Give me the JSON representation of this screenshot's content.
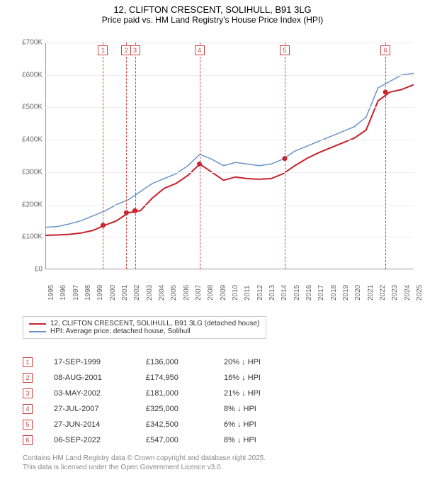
{
  "title_line1": "12, CLIFTON CRESCENT, SOLIHULL, B91 3LG",
  "title_line2": "Price paid vs. HM Land Registry's House Price Index (HPI)",
  "chart": {
    "type": "line",
    "background_color": "#ffffff",
    "grid_color": "#eeeeee",
    "shade_color": "#e8eef5",
    "vline_color": "#d04040",
    "ylim": [
      0,
      700
    ],
    "ytick_step": 100,
    "ytick_prefix": "£",
    "ytick_suffix": "K",
    "xlim": [
      1995,
      2025
    ],
    "xtick_step": 1,
    "xticks": [
      1995,
      1996,
      1997,
      1998,
      1999,
      2000,
      2001,
      2002,
      2003,
      2004,
      2005,
      2006,
      2007,
      2008,
      2009,
      2010,
      2011,
      2012,
      2013,
      2014,
      2015,
      2016,
      2017,
      2018,
      2019,
      2020,
      2021,
      2022,
      2023,
      2024,
      2025
    ],
    "shaded_year_pairs": [
      [
        1999,
        2000
      ],
      [
        2001,
        2002
      ],
      [
        2003,
        2004
      ],
      [
        2005,
        2006
      ],
      [
        2007,
        2008
      ],
      [
        2009,
        2010
      ],
      [
        2011,
        2012
      ],
      [
        2013,
        2014
      ],
      [
        2015,
        2016
      ],
      [
        2017,
        2018
      ],
      [
        2019,
        2020
      ],
      [
        2021,
        2022
      ],
      [
        2023,
        2024
      ]
    ],
    "event_years": [
      1999.7,
      2001.6,
      2002.3,
      2007.55,
      2014.5,
      2022.7
    ],
    "series": [
      {
        "name": "HPI: Average price, detached house, Solihull",
        "color": "#6a93c9",
        "line_width": 1.5,
        "points_y_k": [
          130,
          132,
          140,
          150,
          165,
          180,
          200,
          215,
          240,
          265,
          280,
          295,
          320,
          355,
          340,
          320,
          330,
          325,
          320,
          325,
          340,
          365,
          380,
          395,
          410,
          425,
          440,
          470,
          560,
          580,
          600,
          605
        ]
      },
      {
        "name": "12, CLIFTON CRESCENT, SOLIHULL, B91 3LG (detached house)",
        "color": "#c8202b",
        "line_width": 2,
        "points_y_k": [
          105,
          106,
          108,
          112,
          120,
          136,
          150,
          175,
          181,
          220,
          250,
          265,
          290,
          325,
          300,
          275,
          285,
          280,
          278,
          280,
          295,
          320,
          342,
          360,
          375,
          390,
          405,
          430,
          520,
          547,
          555,
          570
        ]
      }
    ],
    "sale_markers": [
      {
        "x": 1999.7,
        "y_k": 136
      },
      {
        "x": 2001.6,
        "y_k": 175
      },
      {
        "x": 2002.3,
        "y_k": 181
      },
      {
        "x": 2007.55,
        "y_k": 325
      },
      {
        "x": 2014.5,
        "y_k": 342
      },
      {
        "x": 2022.7,
        "y_k": 547
      }
    ],
    "marker_color": "#c8202b",
    "label_fontsize": 10,
    "title_fontsize": 13
  },
  "legend": {
    "items": [
      {
        "swatch_color": "#c8202b",
        "label": "12, CLIFTON CRESCENT, SOLIHULL, B91 3LG (detached house)"
      },
      {
        "swatch_color": "#6a93c9",
        "label": "HPI: Average price, detached house, Solihull"
      }
    ]
  },
  "transactions": [
    {
      "idx": "1",
      "date": "17-SEP-1999",
      "price": "£136,000",
      "delta": "20%",
      "dir": "↓",
      "suffix": "HPI"
    },
    {
      "idx": "2",
      "date": "08-AUG-2001",
      "price": "£174,950",
      "delta": "16%",
      "dir": "↓",
      "suffix": "HPI"
    },
    {
      "idx": "3",
      "date": "03-MAY-2002",
      "price": "£181,000",
      "delta": "21%",
      "dir": "↓",
      "suffix": "HPI"
    },
    {
      "idx": "4",
      "date": "27-JUL-2007",
      "price": "£325,000",
      "delta": "8%",
      "dir": "↓",
      "suffix": "HPI"
    },
    {
      "idx": "5",
      "date": "27-JUN-2014",
      "price": "£342,500",
      "delta": "6%",
      "dir": "↓",
      "suffix": "HPI"
    },
    {
      "idx": "6",
      "date": "06-SEP-2022",
      "price": "£547,000",
      "delta": "8%",
      "dir": "↓",
      "suffix": "HPI"
    }
  ],
  "footer_line1": "Contains HM Land Registry data © Crown copyright and database right 2025.",
  "footer_line2": "This data is licensed under the Open Government Licence v3.0."
}
